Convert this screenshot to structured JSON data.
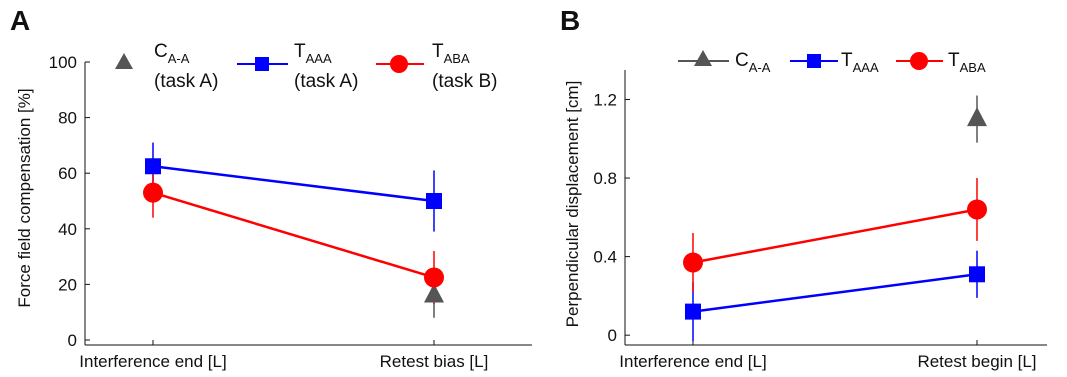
{
  "chart_data": [
    {
      "type": "line",
      "panel_label": "A",
      "title": "",
      "xlabel": "",
      "ylabel": "Force field compensation [%]",
      "categories": [
        "Interference end [L]",
        "Retest bias [L]"
      ],
      "ylim": [
        0,
        100
      ],
      "yticks": [
        "0",
        "20",
        "40",
        "60",
        "80",
        "100"
      ],
      "grid": false,
      "legend_position": "top",
      "series": [
        {
          "key": "c",
          "name": "C",
          "name_sub": "A-A",
          "name_note": "(task A)",
          "color": "#555555",
          "marker": "triangle",
          "connected": false,
          "points": [
            {
              "cat": 1,
              "value": 16,
              "err": 8
            }
          ]
        },
        {
          "key": "taaa",
          "name": "T",
          "name_sub": "AAA",
          "name_note": "(task A)",
          "color": "#0000ff",
          "marker": "square",
          "connected": true,
          "points": [
            {
              "cat": 0,
              "value": 62.5,
              "err": 8.5
            },
            {
              "cat": 1,
              "value": 50,
              "err": 11
            }
          ]
        },
        {
          "key": "taba",
          "name": "T",
          "name_sub": "ABA",
          "name_note": "(task B)",
          "color": "#ff0000",
          "marker": "circle",
          "connected": true,
          "points": [
            {
              "cat": 0,
              "value": 53,
              "err": 9
            },
            {
              "cat": 1,
              "value": 22.5,
              "err": 9.5
            }
          ]
        }
      ]
    },
    {
      "type": "line",
      "panel_label": "B",
      "title": "",
      "xlabel": "",
      "ylabel": "Perpendicular displacement [cm]",
      "categories": [
        "Interference end [L]",
        "Retest begin [L]"
      ],
      "ylim": [
        -0.05,
        1.35
      ],
      "yticks": [
        "0",
        "0.4",
        "0.8",
        "1.2"
      ],
      "ytick_values": [
        0,
        0.4,
        0.8,
        1.2
      ],
      "grid": false,
      "legend_position": "top",
      "series": [
        {
          "key": "c",
          "name": "C",
          "name_sub": "A-A",
          "color": "#555555",
          "marker": "triangle",
          "connected": false,
          "points": [
            {
              "cat": 1,
              "value": 1.1,
              "err": 0.12
            }
          ]
        },
        {
          "key": "taaa",
          "name": "T",
          "name_sub": "AAA",
          "color": "#0000ff",
          "marker": "square",
          "connected": true,
          "points": [
            {
              "cat": 0,
              "value": 0.12,
              "err": 0.15
            },
            {
              "cat": 1,
              "value": 0.31,
              "err": 0.12
            }
          ]
        },
        {
          "key": "taba",
          "name": "T",
          "name_sub": "ABA",
          "color": "#ff0000",
          "marker": "circle",
          "connected": true,
          "points": [
            {
              "cat": 0,
              "value": 0.37,
              "err": 0.15
            },
            {
              "cat": 1,
              "value": 0.64,
              "err": 0.16
            }
          ]
        }
      ]
    }
  ]
}
